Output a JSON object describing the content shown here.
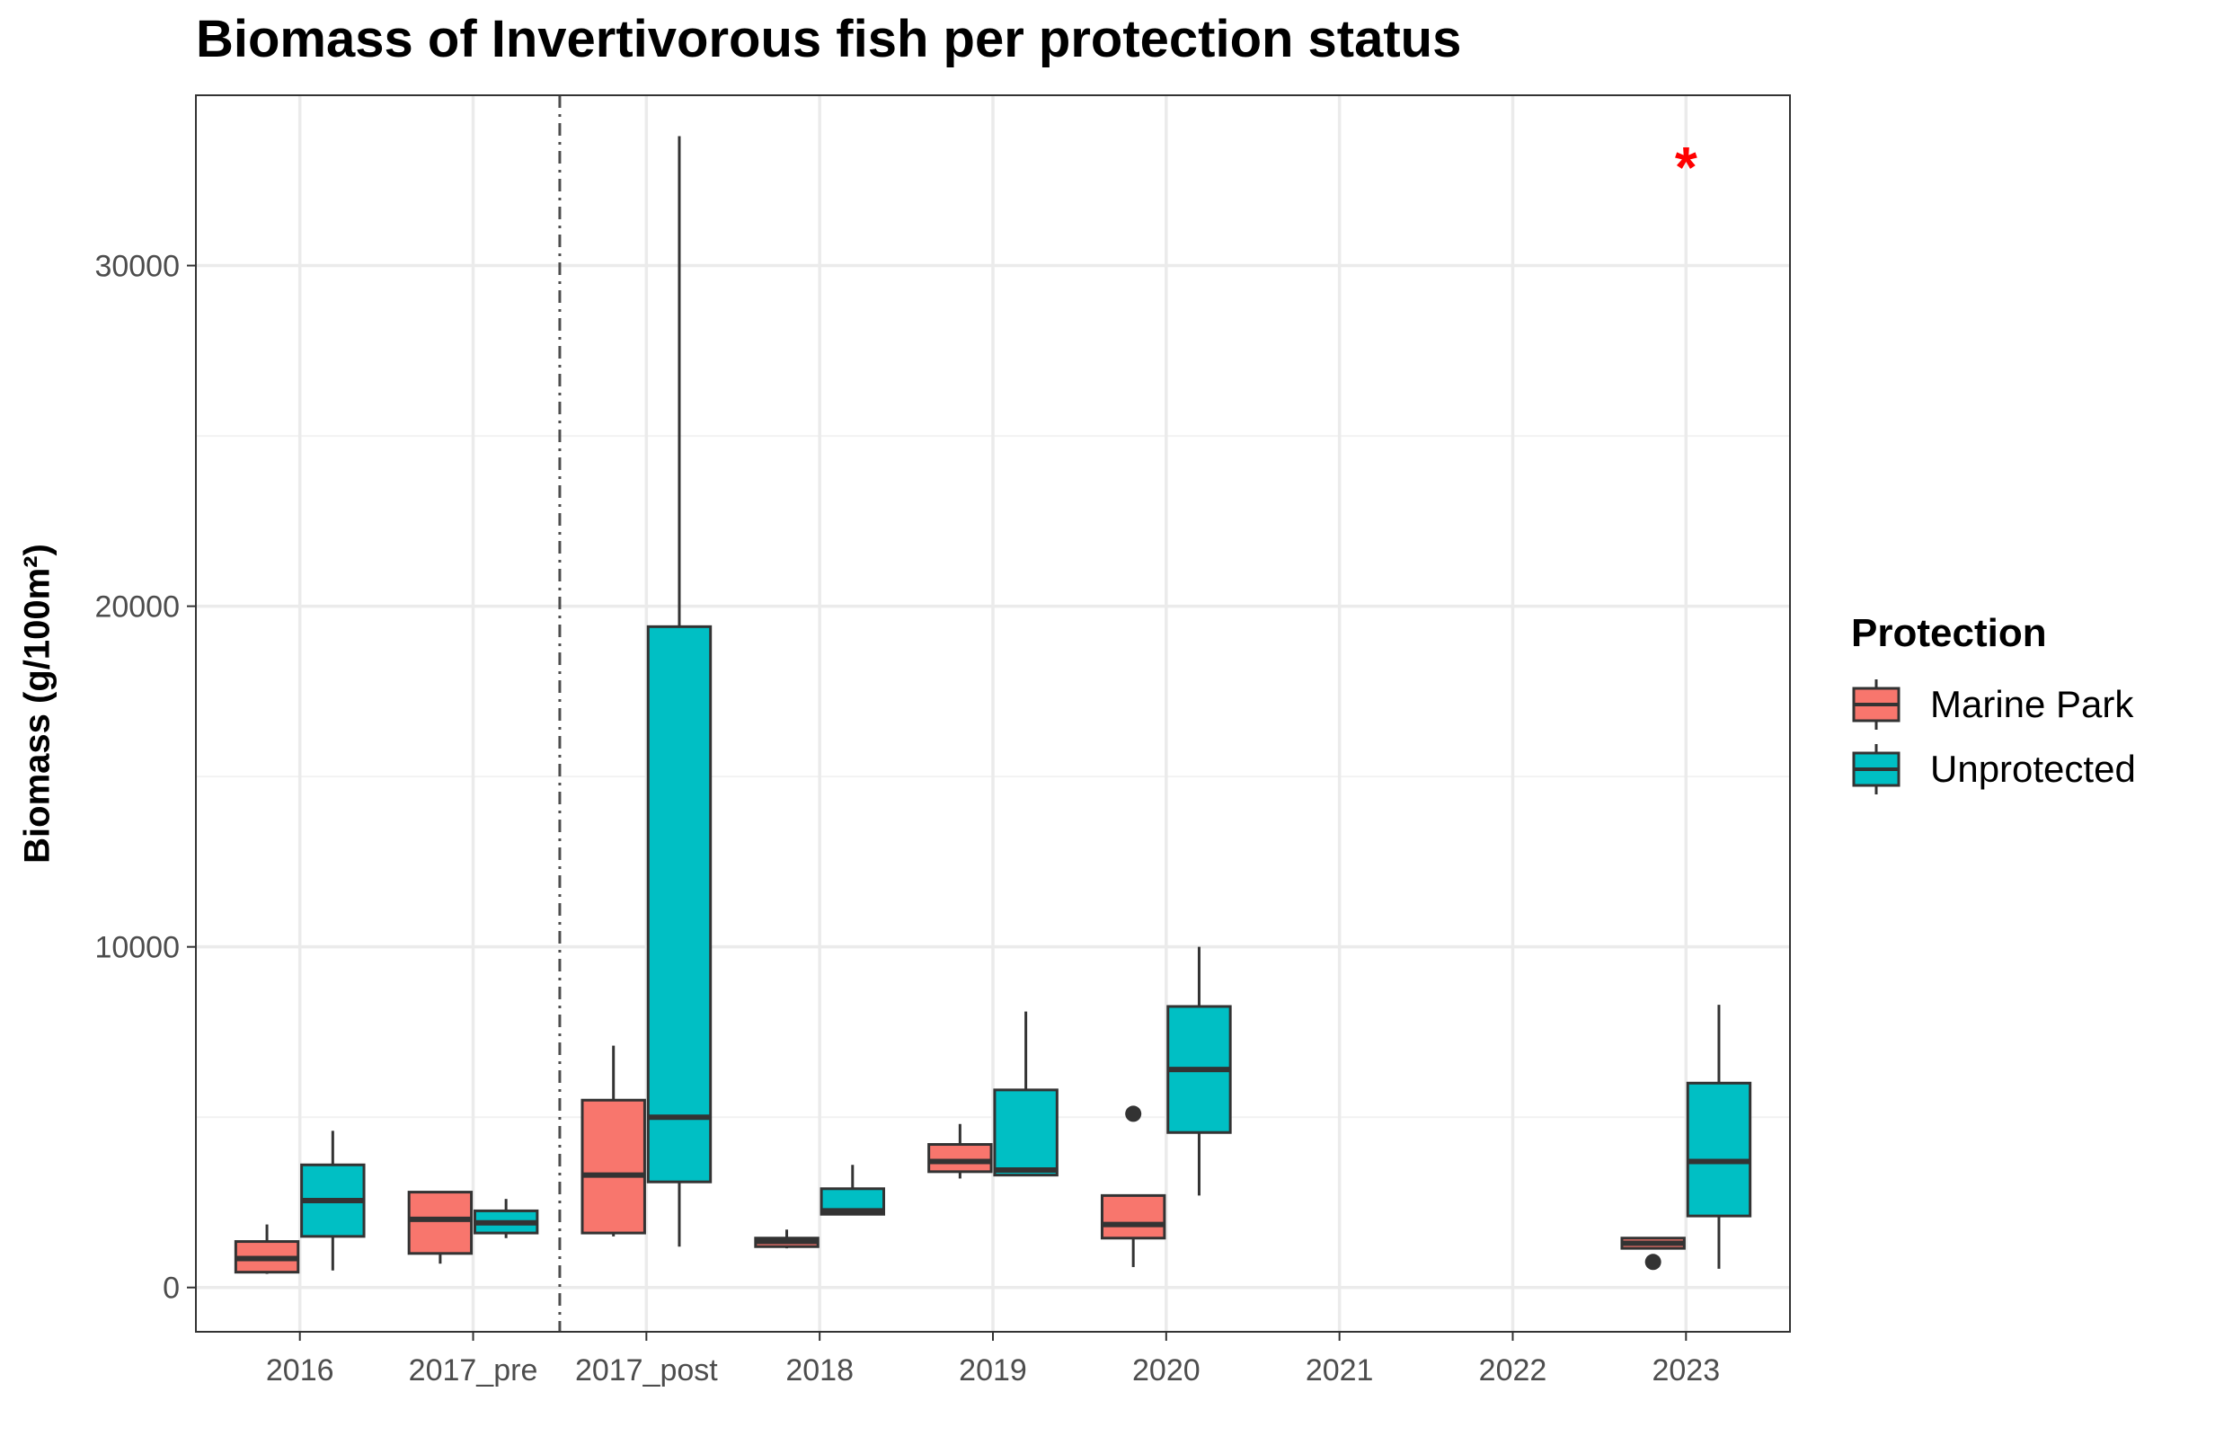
{
  "chart_data": {
    "type": "boxplot",
    "title": "Biomass of Invertivorous fish per protection status",
    "xlabel": "",
    "ylabel": "Biomass (g/100m²)",
    "ylim": [
      -1300,
      35000
    ],
    "yticks": [
      0,
      10000,
      20000,
      30000
    ],
    "categories": [
      "2016",
      "2017_pre",
      "2017_post",
      "2018",
      "2019",
      "2020",
      "2021",
      "2022",
      "2023"
    ],
    "grid": true,
    "legend": {
      "title": "Protection",
      "position": "right"
    },
    "reference_line": {
      "between": [
        "2017_pre",
        "2017_post"
      ],
      "style": "dot-dash"
    },
    "annotations": [
      {
        "text": "*",
        "category": "2023",
        "y": 33200,
        "color": "#ff0000"
      }
    ],
    "series": [
      {
        "name": "Marine Park",
        "color": "#F8766D",
        "boxes": [
          {
            "category": "2016",
            "min": 400,
            "q1": 450,
            "median": 850,
            "q3": 1350,
            "max": 1850,
            "outliers": []
          },
          {
            "category": "2017_pre",
            "min": 700,
            "q1": 1000,
            "median": 2000,
            "q3": 2800,
            "max": 2800,
            "outliers": []
          },
          {
            "category": "2017_post",
            "min": 1500,
            "q1": 1600,
            "median": 3300,
            "q3": 5500,
            "max": 7100,
            "outliers": []
          },
          {
            "category": "2018",
            "min": 1150,
            "q1": 1200,
            "median": 1350,
            "q3": 1450,
            "max": 1700,
            "outliers": []
          },
          {
            "category": "2019",
            "min": 3200,
            "q1": 3400,
            "median": 3700,
            "q3": 4200,
            "max": 4800,
            "outliers": []
          },
          {
            "category": "2020",
            "min": 600,
            "q1": 1450,
            "median": 1850,
            "q3": 2700,
            "max": 2700,
            "outliers": [
              5100
            ]
          },
          {
            "category": "2023",
            "min": 1150,
            "q1": 1150,
            "median": 1300,
            "q3": 1450,
            "max": 1450,
            "outliers": [
              750
            ]
          }
        ]
      },
      {
        "name": "Unprotected",
        "color": "#00BFC4",
        "boxes": [
          {
            "category": "2016",
            "min": 500,
            "q1": 1500,
            "median": 2550,
            "q3": 3600,
            "max": 4600,
            "outliers": []
          },
          {
            "category": "2017_pre",
            "min": 1450,
            "q1": 1600,
            "median": 1900,
            "q3": 2250,
            "max": 2600,
            "outliers": []
          },
          {
            "category": "2017_post",
            "min": 1200,
            "q1": 3100,
            "median": 5000,
            "q3": 19400,
            "max": 33800,
            "outliers": []
          },
          {
            "category": "2018",
            "min": 2150,
            "q1": 2150,
            "median": 2250,
            "q3": 2900,
            "max": 3600,
            "outliers": []
          },
          {
            "category": "2019",
            "min": 3300,
            "q1": 3300,
            "median": 3450,
            "q3": 5800,
            "max": 8100,
            "outliers": []
          },
          {
            "category": "2020",
            "min": 2700,
            "q1": 4550,
            "median": 6400,
            "q3": 8250,
            "max": 10000,
            "outliers": []
          },
          {
            "category": "2023",
            "min": 550,
            "q1": 2100,
            "median": 3700,
            "q3": 6000,
            "max": 8300,
            "outliers": []
          }
        ]
      }
    ]
  }
}
